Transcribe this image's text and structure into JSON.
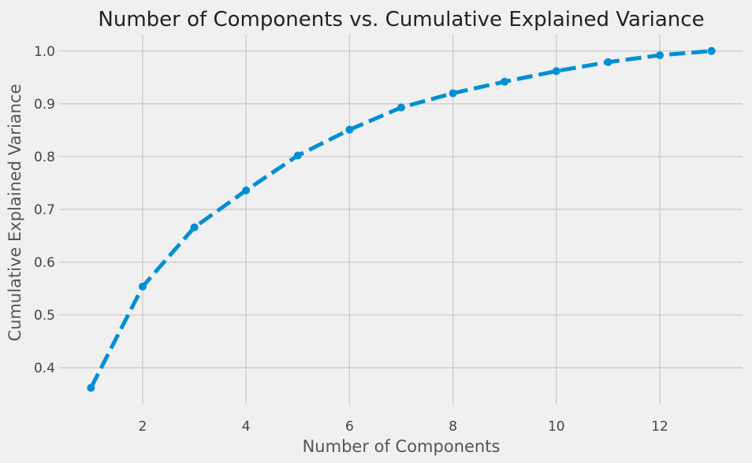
{
  "chart_data": {
    "type": "line",
    "title": "Number of Components vs. Cumulative Explained Variance",
    "xlabel": "Number of Components",
    "ylabel": "Cumulative Explained Variance",
    "x": [
      1,
      2,
      3,
      4,
      5,
      6,
      7,
      8,
      9,
      10,
      11,
      12,
      13
    ],
    "series": [
      {
        "values": [
          0.362,
          0.554,
          0.666,
          0.736,
          0.802,
          0.851,
          0.893,
          0.92,
          0.942,
          0.962,
          0.979,
          0.992,
          1.0
        ],
        "color": "#008fd5",
        "line_style": "dashed",
        "marker": "circle"
      }
    ],
    "xlim": [
      0.4,
      13.6
    ],
    "ylim": [
      0.33,
      1.031
    ],
    "xticks": [
      2,
      4,
      6,
      8,
      10,
      12
    ],
    "yticks": [
      0.4,
      0.5,
      0.6,
      0.7,
      0.8,
      0.9,
      1.0
    ],
    "ytick_labels": [
      "0.4",
      "0.5",
      "0.6",
      "0.7",
      "0.8",
      "0.9",
      "1.0"
    ],
    "grid": true,
    "style": "fivethirtyeight",
    "background": "#f0f0f0"
  }
}
